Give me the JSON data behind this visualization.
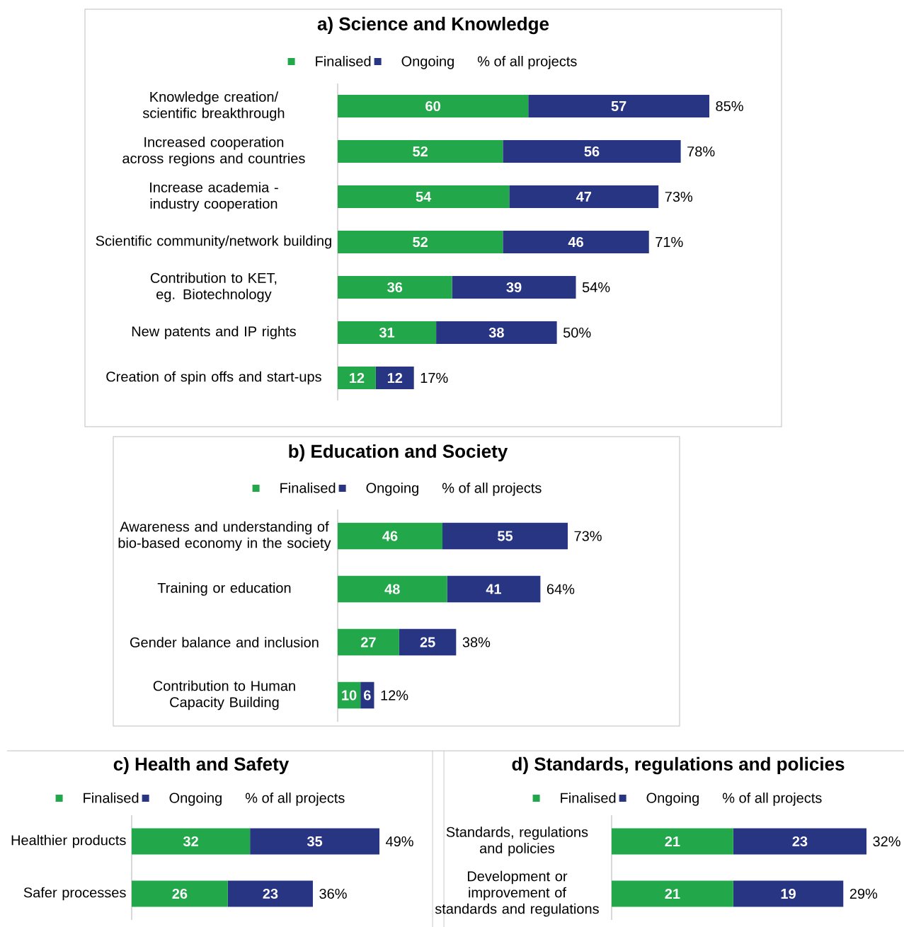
{
  "chart_data": [
    {
      "type": "bar",
      "orientation": "horizontal",
      "stacked": true,
      "title": "a) Science and Knowledge",
      "categories": [
        "Knowledge creation/ scientific breakthrough",
        "Increased cooperation across regions and countries",
        "Increase academia - industry cooperation",
        "Scientific community/network building",
        "Contribution to KET, eg. Biotechnology",
        "New patents and IP rights",
        "Creation of spin offs and start-ups"
      ],
      "series": [
        {
          "name": "Finalised",
          "color": "#22a84a",
          "values": [
            60,
            52,
            54,
            52,
            36,
            31,
            12
          ]
        },
        {
          "name": "Ongoing",
          "color": "#283583",
          "values": [
            57,
            56,
            47,
            46,
            39,
            38,
            12
          ]
        }
      ],
      "data_labels": true,
      "legend": "top",
      "annotations": [
        "% of all projects",
        {
          "text": "85%",
          "x": 117,
          "y": "Knowledge creation/ scientific breakthrough"
        },
        {
          "text": "78%",
          "x": 108,
          "y": "Increased cooperation across regions and countries"
        },
        {
          "text": "73%",
          "x": 101,
          "y": "Increase academia - industry cooperation"
        },
        {
          "text": "71%",
          "x": 98,
          "y": "Scientific community/network building"
        },
        {
          "text": "54%",
          "x": 75,
          "y": "Contribution to KET, eg. Biotechnology"
        },
        {
          "text": "50%",
          "x": 69,
          "y": "New patents and IP rights"
        },
        {
          "text": "17%",
          "x": 24,
          "y": "Creation of spin offs and start-ups"
        }
      ]
    },
    {
      "type": "bar",
      "orientation": "horizontal",
      "stacked": true,
      "title": "b) Education and Society",
      "categories": [
        "Awareness and understanding of bio-based economy in the society",
        "Training or education",
        "Gender balance and inclusion",
        "Contribution to Human Capacity Building"
      ],
      "series": [
        {
          "name": "Finalised",
          "color": "#22a84a",
          "values": [
            46,
            48,
            27,
            10
          ]
        },
        {
          "name": "Ongoing",
          "color": "#283583",
          "values": [
            55,
            41,
            25,
            6
          ]
        }
      ],
      "data_labels": true,
      "legend": "top",
      "annotations": [
        "% of all projects",
        {
          "text": "73%",
          "x": 101,
          "y": "Awareness and understanding of bio-based economy in the society"
        },
        {
          "text": "64%",
          "x": 89,
          "y": "Training or education"
        },
        {
          "text": "38%",
          "x": 52,
          "y": "Gender balance and inclusion"
        },
        {
          "text": "12%",
          "x": 16,
          "y": "Contribution to Human Capacity Building"
        }
      ]
    },
    {
      "type": "bar",
      "orientation": "horizontal",
      "stacked": true,
      "title": "c) Health and Safety",
      "categories": [
        "Healthier products",
        "Safer processes"
      ],
      "series": [
        {
          "name": "Finalised",
          "color": "#22a84a",
          "values": [
            32,
            26
          ]
        },
        {
          "name": "Ongoing",
          "color": "#283583",
          "values": [
            35,
            23
          ]
        }
      ],
      "data_labels": true,
      "legend": "top",
      "annotations": [
        "% of all projects",
        {
          "text": "49%",
          "x": 67,
          "y": "Healthier products"
        },
        {
          "text": "36%",
          "x": 49,
          "y": "Safer processes"
        }
      ]
    },
    {
      "type": "bar",
      "orientation": "horizontal",
      "stacked": true,
      "title": "d) Standards, regulations and policies",
      "categories": [
        "Standards, regulations and policies",
        "Development or improvement of standards and regulations"
      ],
      "series": [
        {
          "name": "Finalised",
          "color": "#22a84a",
          "values": [
            21,
            21
          ]
        },
        {
          "name": "Ongoing",
          "color": "#283583",
          "values": [
            23,
            19
          ]
        }
      ],
      "data_labels": true,
      "legend": "top",
      "annotations": [
        "% of all projects",
        {
          "text": "32%",
          "x": 44,
          "y": "Standards, regulations and policies"
        },
        {
          "text": "29%",
          "x": 40,
          "y": "Development or improvement of standards and regulations"
        }
      ]
    }
  ]
}
